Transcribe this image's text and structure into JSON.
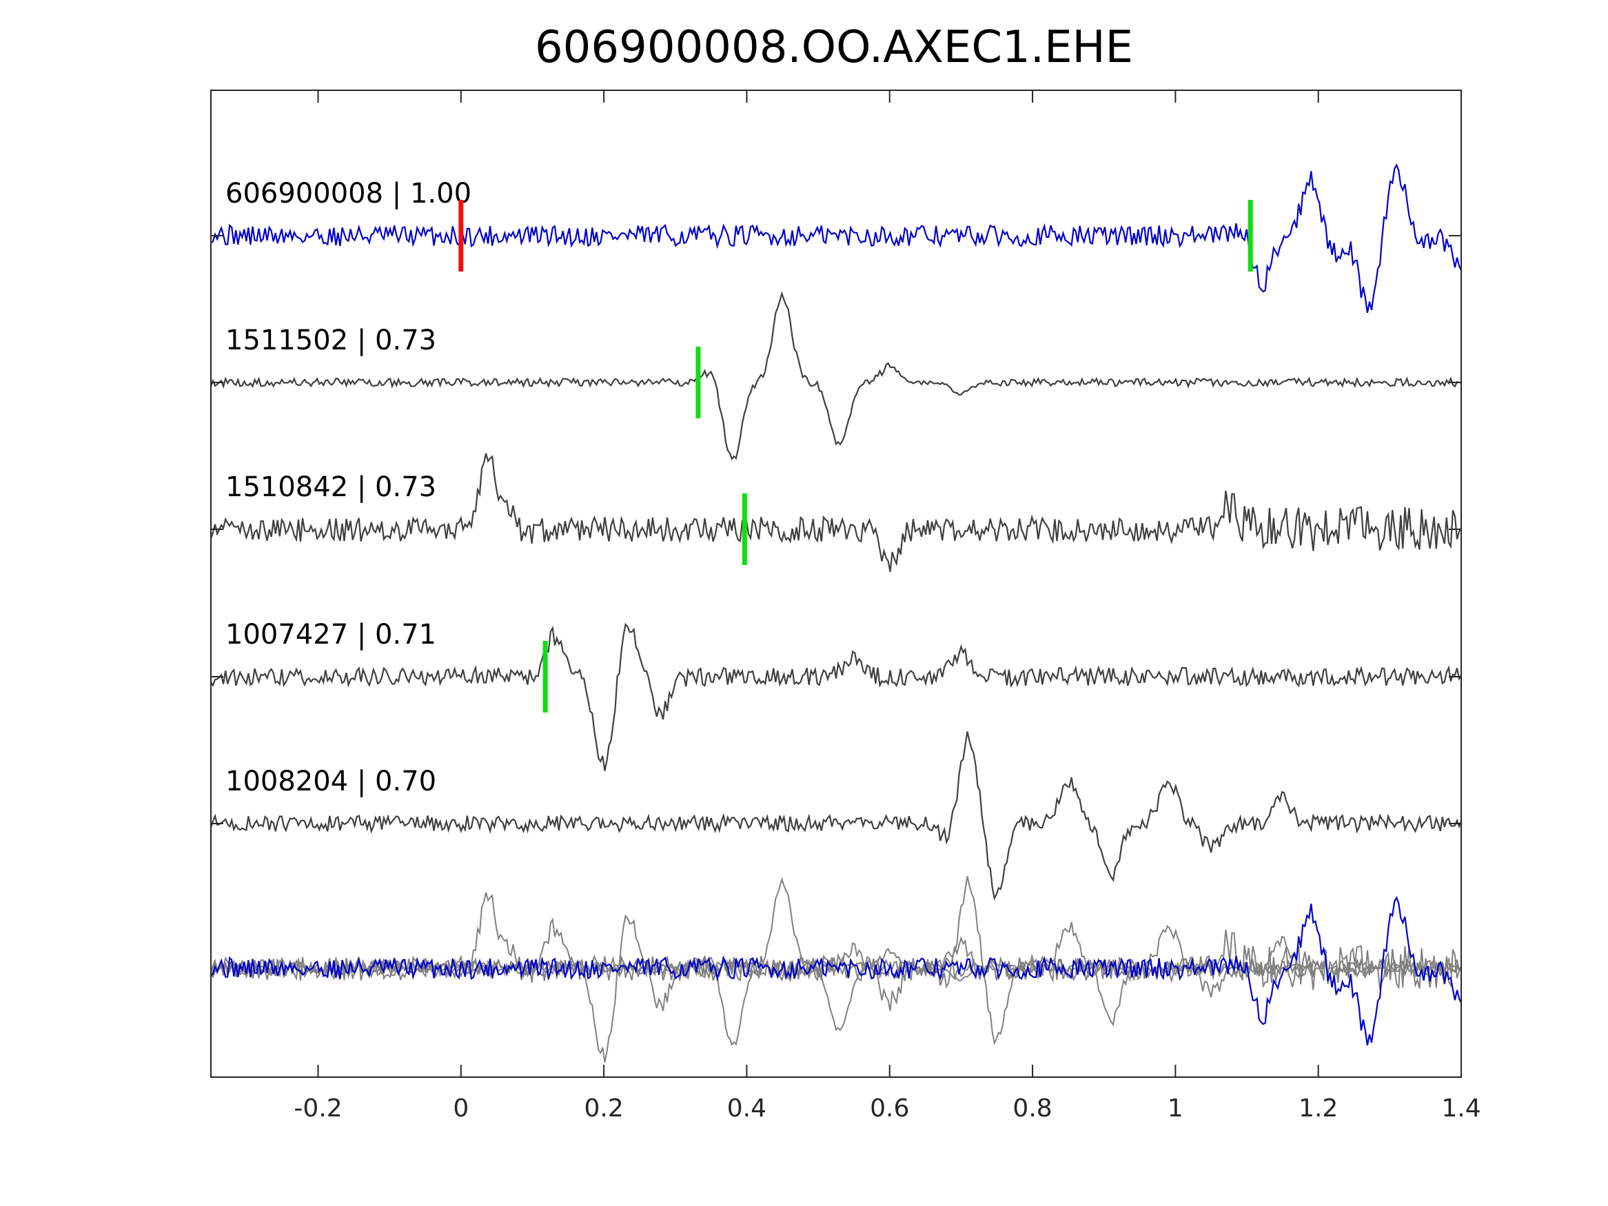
{
  "chart_data": {
    "type": "line",
    "title": "606900008.OO.AXEC1.EHE",
    "xlabel": "",
    "ylabel": "",
    "xlim": [
      -0.35,
      1.4
    ],
    "x_ticks": [
      -0.2,
      0,
      0.2,
      0.4,
      0.6,
      0.8,
      1,
      1.2,
      1.4
    ],
    "x_tick_labels": [
      "-0.2",
      "0",
      "0.2",
      "0.4",
      "0.6",
      "0.8",
      "1",
      "1.2",
      "1.4"
    ],
    "grid": false,
    "colors": {
      "primary_trace": "#0000cc",
      "secondary_trace": "#404040",
      "overlay_secondary": "#808080",
      "reference_pick": "#ee1111",
      "match_pick": "#11dd11",
      "axes": "#262626"
    },
    "series": [
      {
        "name": "606900008 | 1.00",
        "label": "606900008 | 1.00",
        "color": "#0000cc",
        "pick_red_x": 0.0,
        "pick_green_x": 1.105,
        "features": [
          [
            -0.35,
            0.05
          ],
          [
            1.1,
            0.2
          ],
          [
            1.12,
            -0.8
          ],
          [
            1.19,
            0.9
          ],
          [
            1.22,
            -0.3
          ],
          [
            1.27,
            -1.1
          ],
          [
            1.31,
            1.0
          ],
          [
            1.35,
            -0.1
          ],
          [
            1.4,
            -0.5
          ]
        ]
      },
      {
        "name": "1511502 | 0.73",
        "label": "1511502 | 0.73",
        "color": "#404040",
        "pick_green_x": 0.332,
        "features": [
          [
            0.35,
            0.15
          ],
          [
            0.38,
            -1.0
          ],
          [
            0.45,
            1.1
          ],
          [
            0.53,
            -0.8
          ],
          [
            0.6,
            0.2
          ],
          [
            0.7,
            -0.15
          ],
          [
            0.75,
            0.0
          ]
        ]
      },
      {
        "name": "1510842 | 0.73",
        "label": "1510842 | 0.73",
        "color": "#404040",
        "pick_green_x": 0.397,
        "features": [
          [
            0.04,
            1.1
          ],
          [
            0.055,
            -0.7
          ],
          [
            0.065,
            0.85
          ],
          [
            0.08,
            -0.3
          ],
          [
            0.6,
            -0.4
          ],
          [
            1.07,
            0.35
          ]
        ]
      },
      {
        "name": "1007427 | 0.71",
        "label": "1007427 | 0.71",
        "color": "#404040",
        "pick_green_x": 0.118,
        "features": [
          [
            0.13,
            0.45
          ],
          [
            0.2,
            -1.0
          ],
          [
            0.235,
            0.6
          ],
          [
            0.28,
            -0.4
          ],
          [
            0.55,
            0.25
          ],
          [
            0.7,
            0.25
          ]
        ]
      },
      {
        "name": "1008204 | 0.70",
        "label": "1008204 | 0.70",
        "color": "#404040",
        "features": [
          [
            0.68,
            -0.2
          ],
          [
            0.71,
            1.1
          ],
          [
            0.75,
            -0.9
          ],
          [
            0.8,
            0.0
          ],
          [
            0.85,
            0.55
          ],
          [
            0.91,
            -0.65
          ],
          [
            0.99,
            0.55
          ],
          [
            1.05,
            -0.3
          ],
          [
            1.15,
            0.3
          ]
        ]
      }
    ]
  }
}
